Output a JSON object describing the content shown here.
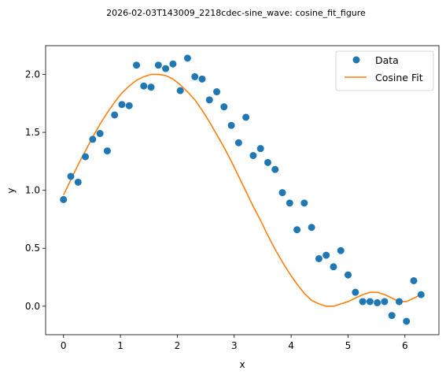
{
  "figure": {
    "title": "2026-02-03T143009_2218cdec-sine_wave: cosine_fit_figure"
  },
  "chart_data": {
    "type": "scatter",
    "xlabel": "x",
    "ylabel": "y",
    "xlim": [
      -0.3142,
      6.5973
    ],
    "ylim": [
      -0.2457,
      2.2478
    ],
    "xticks": [
      0,
      1,
      2,
      3,
      4,
      5,
      6
    ],
    "yticks": [
      0.0,
      0.5,
      1.0,
      1.5,
      2.0
    ],
    "xtick_labels": [
      "0",
      "1",
      "2",
      "3",
      "4",
      "5",
      "6"
    ],
    "ytick_labels": [
      "0.0",
      "0.5",
      "1.0",
      "1.5",
      "2.0"
    ],
    "grid": false,
    "legend_position": "top-right",
    "series": [
      {
        "name": "Data",
        "kind": "scatter",
        "color": "#1f77b4",
        "marker": "circle",
        "x": [
          0.0,
          0.1282,
          0.2565,
          0.3847,
          0.5129,
          0.6411,
          0.7694,
          0.8976,
          1.0258,
          1.1541,
          1.2823,
          1.4105,
          1.5387,
          1.667,
          1.7952,
          1.9234,
          2.0517,
          2.1799,
          2.3081,
          2.4363,
          2.5646,
          2.6928,
          2.821,
          2.9493,
          3.0775,
          3.2057,
          3.3339,
          3.4622,
          3.5904,
          3.7186,
          3.8469,
          3.9751,
          4.1033,
          4.2315,
          4.3598,
          4.488,
          4.6162,
          4.7445,
          4.8727,
          5.0009,
          5.1291,
          5.2574,
          5.3856,
          5.5138,
          5.6421,
          5.7703,
          5.8985,
          6.0267,
          6.155,
          6.2832
        ],
        "y": [
          0.92,
          1.12,
          1.07,
          1.29,
          1.44,
          1.49,
          1.34,
          1.65,
          1.74,
          1.73,
          2.08,
          1.9,
          1.89,
          2.08,
          2.05,
          2.09,
          1.86,
          2.14,
          1.98,
          1.96,
          1.78,
          1.85,
          1.72,
          1.56,
          1.41,
          1.63,
          1.3,
          1.36,
          1.24,
          1.18,
          0.98,
          0.89,
          0.66,
          0.89,
          0.68,
          0.41,
          0.44,
          0.34,
          0.48,
          0.27,
          0.12,
          0.04,
          0.04,
          0.03,
          0.04,
          -0.08,
          0.04,
          -0.13,
          0.22,
          0.1
        ]
      },
      {
        "name": "Cosine Fit",
        "kind": "line",
        "color": "#ff7f0e",
        "x": [
          0.0,
          0.1283,
          0.2565,
          0.3848,
          0.5131,
          0.6413,
          0.7696,
          0.8978,
          1.0261,
          1.1544,
          1.2826,
          1.4109,
          1.5391,
          1.6674,
          1.7957,
          1.9239,
          2.0522,
          2.1804,
          2.3087,
          2.437,
          2.5652,
          2.6935,
          2.8217,
          2.95,
          3.0783,
          3.2065,
          3.3348,
          3.463,
          3.5913,
          3.7196,
          3.8478,
          3.9761,
          4.1043,
          4.2326,
          4.3609,
          4.4891,
          4.6174,
          4.7457,
          4.8739,
          5.0022,
          5.1304,
          5.2587,
          5.387,
          5.5152,
          5.6435,
          5.7717,
          5.9,
          6.0283,
          6.1565,
          6.2832
        ],
        "y": [
          0.96,
          1.09,
          1.22,
          1.34,
          1.46,
          1.57,
          1.67,
          1.76,
          1.84,
          1.9,
          1.95,
          1.98,
          2.0,
          2.0,
          1.99,
          1.96,
          1.91,
          1.85,
          1.78,
          1.69,
          1.59,
          1.48,
          1.37,
          1.25,
          1.12,
          0.99,
          0.86,
          0.74,
          0.61,
          0.49,
          0.38,
          0.28,
          0.19,
          0.11,
          0.05,
          0.02,
          0.0,
          0.0,
          0.02,
          0.04,
          0.07,
          0.1,
          0.12,
          0.12,
          0.1,
          0.07,
          0.04,
          0.04,
          0.07,
          0.1
        ]
      }
    ]
  }
}
